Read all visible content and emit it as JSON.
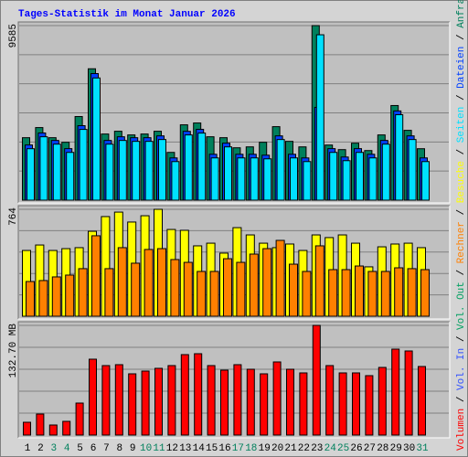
{
  "legend_separator": " / ",
  "chart_data": [
    {
      "type": "bar",
      "title": "Tages-Statistik im Monat Januar 2026",
      "ylim": [
        0,
        9585
      ],
      "yticks": [
        9585
      ],
      "series": [
        {
          "name": "Anfragen",
          "color": "#00805c",
          "values": [
            3430,
            3986,
            3430,
            3178,
            4591,
            7214,
            3632,
            3784,
            3582,
            3632,
            3784,
            2623,
            4137,
            4238,
            3481,
            3430,
            2876,
            2926,
            3178,
            4036,
            3229,
            2926,
            9585,
            3027,
            2775,
            3128,
            2724,
            3582,
            5196,
            3834,
            2825
          ]
        },
        {
          "name": "Dateien",
          "color": "#0040ff",
          "values": [
            3030,
            3690,
            3280,
            2830,
            4090,
            6950,
            3280,
            3480,
            3430,
            3430,
            3530,
            2320,
            3780,
            3890,
            2520,
            3130,
            2520,
            2520,
            2470,
            3530,
            2520,
            2320,
            5095,
            2830,
            2370,
            2830,
            2520,
            3280,
            4900,
            3530,
            2320
          ]
        },
        {
          "name": "Seiten",
          "color": "#00e0ff",
          "values": [
            2825,
            3481,
            3077,
            2623,
            3885,
            6710,
            3077,
            3279,
            3229,
            3229,
            3330,
            2119,
            3582,
            3683,
            2321,
            2926,
            2321,
            2321,
            2270,
            3330,
            2321,
            2119,
            9081,
            2623,
            2169,
            2623,
            2321,
            3077,
            4692,
            3330,
            2119
          ]
        }
      ]
    },
    {
      "type": "bar",
      "ylim": [
        0,
        764
      ],
      "yticks": [
        764
      ],
      "series": [
        {
          "name": "Besuche",
          "color": "#ffff00",
          "values": [
            470,
            509,
            470,
            483,
            490,
            607,
            712,
            744,
            673,
            718,
            764,
            620,
            614,
            503,
            522,
            451,
            633,
            581,
            522,
            490,
            516,
            470,
            581,
            562,
            581,
            522,
            353,
            496,
            516,
            522,
            490
          ]
        },
        {
          "name": "Rechner",
          "color": "#ff8000",
          "values": [
            248,
            255,
            281,
            294,
            340,
            575,
            340,
            490,
            379,
            477,
            483,
            405,
            385,
            320,
            320,
            411,
            385,
            444,
            483,
            542,
            372,
            320,
            503,
            333,
            333,
            359,
            320,
            320,
            346,
            340,
            333
          ]
        }
      ]
    },
    {
      "type": "bar",
      "ylim": [
        0,
        132.7
      ],
      "yticks": [
        {
          "value": 132.7,
          "label": "132.70 MB"
        }
      ],
      "categories": [
        "1",
        "2",
        "3",
        "4",
        "5",
        "6",
        "7",
        "8",
        "9",
        "10",
        "11",
        "12",
        "13",
        "14",
        "15",
        "16",
        "17",
        "18",
        "19",
        "20",
        "21",
        "22",
        "23",
        "24",
        "25",
        "26",
        "27",
        "28",
        "29",
        "30",
        "31"
      ],
      "category_colors": [
        "#000000",
        "#000000",
        "#00805c",
        "#00805c",
        "#000000",
        "#000000",
        "#000000",
        "#000000",
        "#000000",
        "#00805c",
        "#00805c",
        "#000000",
        "#000000",
        "#000000",
        "#000000",
        "#000000",
        "#00805c",
        "#00805c",
        "#000000",
        "#000000",
        "#000000",
        "#000000",
        "#000000",
        "#00805c",
        "#00805c",
        "#000000",
        "#000000",
        "#000000",
        "#000000",
        "#000000",
        "#00805c"
      ],
      "series": [
        {
          "name": "Volumen",
          "color": "#ff0000",
          "values": [
            15.48,
            25.44,
            12.17,
            16.59,
            38.71,
            91.8,
            84.06,
            85.16,
            74.1,
            77.42,
            80.74,
            84.06,
            97.33,
            98.43,
            84.06,
            78.53,
            85.16,
            79.63,
            74.1,
            88.48,
            79.63,
            75.21,
            132.7,
            84.06,
            75.21,
            75.21,
            71.89,
            81.84,
            103.96,
            101.75,
            82.95
          ]
        },
        {
          "name": "Vol. In",
          "color": "#3050ff",
          "values": [
            0,
            0,
            0,
            0,
            0,
            0,
            0,
            0,
            0,
            0,
            0,
            0,
            0,
            0,
            0,
            0,
            0,
            0,
            0,
            0,
            0,
            0,
            0,
            0,
            0,
            0,
            0,
            0,
            0,
            0,
            0
          ]
        },
        {
          "name": "Vol. Out",
          "color": "#00a060",
          "values": [
            0,
            0,
            0,
            0,
            0,
            0,
            0,
            0,
            0,
            0,
            0,
            0,
            0,
            0,
            0,
            0,
            0,
            0,
            0,
            0,
            0,
            0,
            0,
            0,
            0,
            0,
            0,
            0,
            0,
            0,
            0
          ]
        }
      ]
    }
  ]
}
